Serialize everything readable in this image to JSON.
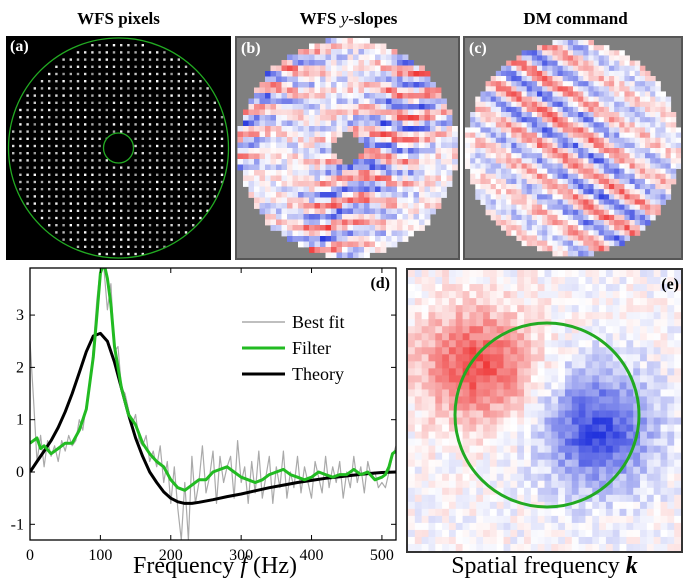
{
  "titles": {
    "a": "WFS pixels",
    "b_prefix": "WFS ",
    "b_var": "y",
    "b_suffix": "-slopes",
    "c": "DM command"
  },
  "panel_labels": {
    "a": "(a)",
    "b": "(b)",
    "c": "(c)",
    "d": "(d)",
    "e": "(e)"
  },
  "colors": {
    "circle": "#22aa22",
    "filter": "#22bb22",
    "best_fit": "#aaaaaa",
    "theory": "#000000",
    "red": "#ee3333",
    "blue": "#2233dd",
    "mask": "#7f7f7f"
  },
  "xlabel_d": {
    "prefix": "Frequency ",
    "var": "f",
    "suffix": " (Hz)"
  },
  "xlabel_e": {
    "prefix": "Spatial frequency ",
    "var": "k"
  },
  "chart_data": {
    "type": "line",
    "x_ticks": [
      "0",
      "100",
      "200",
      "300",
      "400",
      "500"
    ],
    "y_ticks": [
      "-1",
      "0",
      "1",
      "2",
      "3"
    ],
    "xlim": [
      0,
      520
    ],
    "ylim": [
      -1.3,
      3.9
    ],
    "legend": {
      "placement": "top-right",
      "entries": [
        "Best fit",
        "Filter",
        "Theory"
      ]
    },
    "series": [
      {
        "name": "Filter",
        "x": [
          0,
          5,
          10,
          15,
          20,
          30,
          40,
          50,
          60,
          70,
          80,
          90,
          95,
          100,
          105,
          110,
          115,
          120,
          130,
          140,
          150,
          160,
          170,
          180,
          190,
          200,
          210,
          220,
          230,
          240,
          250,
          260,
          270,
          280,
          290,
          300,
          310,
          320,
          330,
          340,
          350,
          360,
          370,
          380,
          390,
          400,
          410,
          420,
          430,
          440,
          450,
          460,
          470,
          480,
          490,
          500,
          505,
          510,
          515,
          520
        ],
        "y": [
          0.55,
          0.6,
          0.65,
          0.45,
          0.5,
          0.35,
          0.45,
          0.55,
          0.55,
          0.8,
          1.2,
          2.2,
          3.0,
          3.8,
          4.0,
          3.7,
          3.2,
          2.4,
          1.6,
          1.1,
          0.9,
          0.55,
          0.35,
          0.2,
          0.1,
          -0.15,
          -0.3,
          -0.35,
          -0.25,
          -0.15,
          -0.15,
          0.0,
          0.05,
          0.1,
          0.0,
          -0.1,
          -0.15,
          -0.2,
          -0.15,
          -0.05,
          0.0,
          0.05,
          -0.05,
          -0.1,
          -0.15,
          -0.1,
          0.0,
          -0.05,
          -0.1,
          -0.05,
          -0.05,
          0.05,
          -0.05,
          0.0,
          -0.15,
          -0.1,
          -0.05,
          0.1,
          0.35,
          0.4
        ]
      },
      {
        "name": "Theory",
        "x": [
          0,
          10,
          20,
          30,
          40,
          50,
          60,
          70,
          80,
          90,
          100,
          110,
          120,
          130,
          140,
          150,
          160,
          170,
          180,
          190,
          200,
          210,
          220,
          230,
          240,
          260,
          280,
          300,
          320,
          340,
          360,
          380,
          400,
          420,
          440,
          460,
          480,
          500,
          520
        ],
        "y": [
          0.0,
          0.2,
          0.4,
          0.6,
          0.85,
          1.15,
          1.5,
          1.9,
          2.3,
          2.6,
          2.65,
          2.5,
          2.1,
          1.6,
          1.1,
          0.65,
          0.3,
          0.0,
          -0.2,
          -0.38,
          -0.5,
          -0.57,
          -0.6,
          -0.6,
          -0.58,
          -0.53,
          -0.47,
          -0.42,
          -0.36,
          -0.3,
          -0.25,
          -0.2,
          -0.16,
          -0.12,
          -0.09,
          -0.06,
          -0.03,
          -0.01,
          0.0
        ]
      },
      {
        "name": "Best fit",
        "x": [
          0,
          5,
          10,
          15,
          20,
          25,
          30,
          35,
          40,
          45,
          50,
          55,
          60,
          65,
          70,
          75,
          80,
          85,
          90,
          95,
          100,
          105,
          110,
          115,
          120,
          125,
          130,
          135,
          140,
          145,
          150,
          155,
          160,
          165,
          170,
          175,
          180,
          185,
          190,
          195,
          200,
          205,
          210,
          215,
          220,
          225,
          230,
          235,
          240,
          245,
          250,
          255,
          260,
          265,
          270,
          275,
          280,
          285,
          290,
          295,
          300,
          305,
          310,
          315,
          320,
          325,
          330,
          335,
          340,
          345,
          350,
          355,
          360,
          365,
          370,
          375,
          380,
          385,
          390,
          395,
          400,
          405,
          410,
          415,
          420,
          425,
          430,
          435,
          440,
          445,
          450,
          455,
          460,
          465,
          470,
          475,
          480,
          485,
          490,
          495,
          500,
          505,
          510,
          515,
          520
        ],
        "y": [
          2.5,
          1.4,
          0.2,
          0.7,
          0.1,
          0.6,
          0.3,
          0.5,
          0.2,
          0.6,
          0.4,
          0.7,
          0.5,
          0.6,
          1.0,
          0.8,
          1.3,
          1.6,
          2.4,
          3.3,
          3.9,
          3.9,
          3.1,
          3.6,
          2.3,
          2.4,
          1.6,
          1.5,
          1.2,
          0.9,
          1.1,
          0.6,
          0.5,
          0.7,
          0.2,
          0.4,
          0.1,
          0.5,
          -0.2,
          0.2,
          -0.6,
          0.1,
          -0.7,
          -1.3,
          -0.2,
          -1.3,
          0.3,
          -0.6,
          -0.2,
          0.5,
          -0.4,
          -0.1,
          0.4,
          -0.6,
          0.3,
          -0.2,
          0.1,
          0.3,
          -0.5,
          0.6,
          -0.2,
          0.1,
          -0.6,
          0.2,
          -0.4,
          0.4,
          -0.5,
          -0.1,
          0.3,
          -0.6,
          0.1,
          -0.3,
          0.4,
          -0.5,
          0.0,
          -0.3,
          0.3,
          -0.4,
          0.1,
          -0.2,
          -0.5,
          0.2,
          -0.1,
          -0.4,
          0.3,
          -0.3,
          0.1,
          -0.2,
          0.2,
          -0.5,
          0.0,
          -0.3,
          0.3,
          -0.2,
          0.1,
          -0.4,
          0.2,
          -0.1,
          0.0,
          -0.3,
          -0.2,
          -0.3,
          0.0,
          0.3,
          0.5
        ]
      }
    ]
  }
}
